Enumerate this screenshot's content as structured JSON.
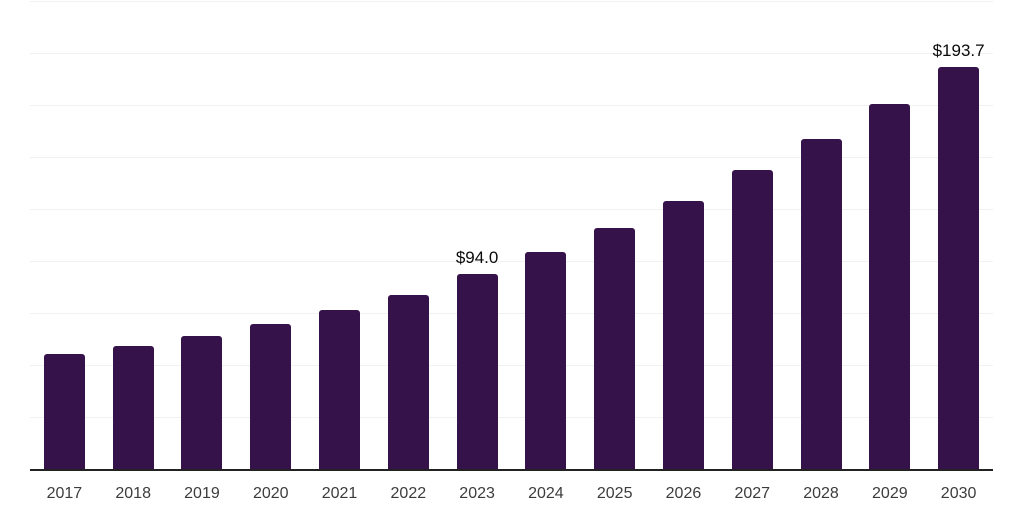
{
  "chart_data": {
    "type": "bar",
    "title": "",
    "xlabel": "",
    "ylabel": "",
    "categories": [
      "2017",
      "2018",
      "2019",
      "2020",
      "2021",
      "2022",
      "2023",
      "2024",
      "2025",
      "2026",
      "2027",
      "2028",
      "2029",
      "2030"
    ],
    "values": [
      55.6,
      59.4,
      64.2,
      70.1,
      77.1,
      84.0,
      94.0,
      104.7,
      116.4,
      129.1,
      144.3,
      159.0,
      176.0,
      193.7
    ],
    "point_labels": [
      "",
      "",
      "",
      "",
      "",
      "",
      "$94.0",
      "",
      "",
      "",
      "",
      "",
      "",
      "$193.7"
    ],
    "ylim": [
      0,
      225
    ],
    "gridline_step": 25,
    "grid": true,
    "legend_position": "none",
    "y_tick_labels_visible": false,
    "colors": {
      "bar": "#35124a",
      "gridline": "#f1f1f1",
      "axis_line": "#222222",
      "tick_label": "#3c3c3c",
      "point_label": "#0a0a0a",
      "background": "#ffffff"
    }
  }
}
